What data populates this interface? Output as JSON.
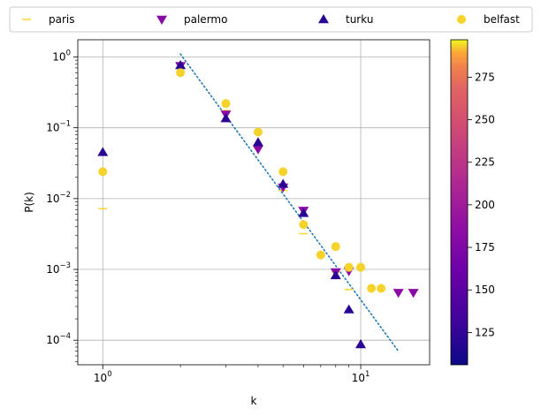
{
  "chart_data": {
    "type": "scatter",
    "title": "",
    "xlabel": "k",
    "ylabel": "P(k)",
    "xscale": "log",
    "yscale": "log",
    "xlim": [
      0.8,
      18.5
    ],
    "ylim": [
      4.5e-05,
      1.75
    ],
    "grid": true,
    "legend": {
      "placement": "top",
      "columns": 4
    },
    "x_ticks": [
      {
        "value": 1,
        "base": "10",
        "exp": "0"
      },
      {
        "value": 10,
        "base": "10",
        "exp": "1"
      }
    ],
    "y_ticks": [
      {
        "value": 1,
        "base": "10",
        "exp": "0"
      },
      {
        "value": 0.1,
        "base": "10",
        "exp": "−1"
      },
      {
        "value": 0.01,
        "base": "10",
        "exp": "−2"
      },
      {
        "value": 0.001,
        "base": "10",
        "exp": "−3"
      },
      {
        "value": 0.0001,
        "base": "10",
        "exp": "−4"
      }
    ],
    "colorbar": {
      "colormap": "plasma",
      "min": 106,
      "max": 297,
      "ticks": [
        "125",
        "150",
        "175",
        "200",
        "225",
        "250",
        "275"
      ]
    },
    "series": [
      {
        "name": "paris",
        "marker": "hline",
        "color": "#fed530",
        "points": [
          [
            1,
            0.0072
          ],
          [
            2,
            0.8
          ],
          [
            3,
            0.175
          ],
          [
            4,
            0.052
          ],
          [
            5,
            0.013
          ],
          [
            6,
            0.0032
          ],
          [
            7,
            0.00155
          ],
          [
            8,
            0.00092
          ],
          [
            9,
            0.00052
          ]
        ]
      },
      {
        "name": "palermo",
        "marker": "tri_down",
        "color": "#8b0aa5",
        "points": [
          [
            2,
            0.75
          ],
          [
            3,
            0.155
          ],
          [
            4,
            0.05
          ],
          [
            5,
            0.0145
          ],
          [
            6,
            0.0068
          ],
          [
            8,
            0.00092
          ],
          [
            9,
            0.00095
          ],
          [
            14,
            0.00047
          ],
          [
            16,
            0.00047
          ]
        ]
      },
      {
        "name": "turku",
        "marker": "tri_up",
        "color": "#2a0593",
        "points": [
          [
            1,
            0.045
          ],
          [
            2,
            0.76
          ],
          [
            3,
            0.135
          ],
          [
            4,
            0.062
          ],
          [
            5,
            0.016
          ],
          [
            6,
            0.0062
          ],
          [
            8,
            0.00082
          ],
          [
            9,
            0.00027
          ],
          [
            10,
            8.7e-05
          ]
        ]
      },
      {
        "name": "belfast",
        "marker": "circle",
        "color": "#f6d32a",
        "points": [
          [
            1,
            0.024
          ],
          [
            2,
            0.6
          ],
          [
            3,
            0.22
          ],
          [
            4,
            0.087
          ],
          [
            5,
            0.024
          ],
          [
            6,
            0.0043
          ],
          [
            7,
            0.0016
          ],
          [
            8,
            0.0021
          ],
          [
            9,
            0.00107
          ],
          [
            10,
            0.00107
          ],
          [
            11,
            0.00054
          ],
          [
            12,
            0.00054
          ]
        ]
      }
    ],
    "fit_line": {
      "style": "dotted",
      "color": "#1f77b4",
      "points": [
        [
          2,
          1.1
        ],
        [
          14,
          7e-05
        ]
      ]
    }
  }
}
